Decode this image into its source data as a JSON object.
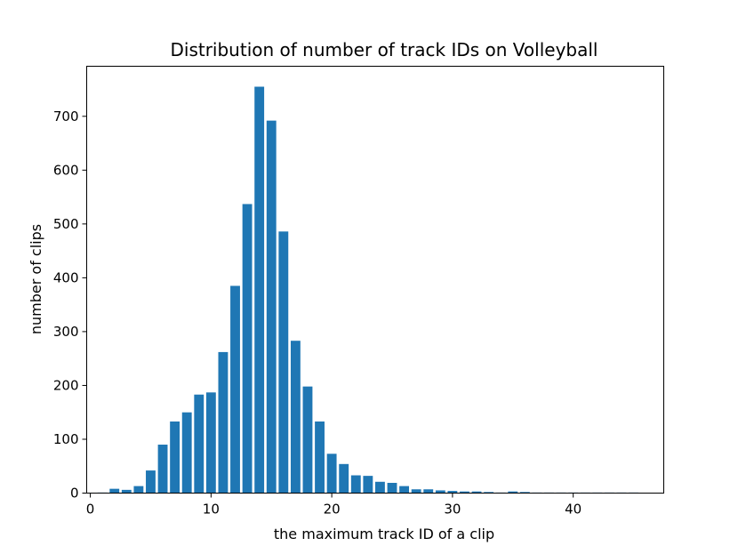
{
  "chart_data": {
    "type": "bar",
    "title": "Distribution of number of track IDs on Volleyball",
    "xlabel": "the maximum track ID of a clip",
    "ylabel": "number of clips",
    "xlim": [
      -0.3,
      47.5
    ],
    "ylim": [
      0,
      793
    ],
    "xticks": [
      0,
      10,
      20,
      30,
      40
    ],
    "yticks": [
      0,
      100,
      200,
      300,
      400,
      500,
      600,
      700
    ],
    "bar_color": "#1f77b4",
    "grid": false,
    "legend": "none",
    "x": [
      1,
      2,
      3,
      4,
      5,
      6,
      7,
      8,
      9,
      10,
      11,
      12,
      13,
      14,
      15,
      16,
      17,
      18,
      19,
      20,
      21,
      22,
      23,
      24,
      25,
      26,
      27,
      28,
      29,
      30,
      31,
      32,
      33,
      34,
      35,
      36,
      37,
      38,
      39,
      40,
      41,
      42,
      43,
      44,
      45
    ],
    "values": [
      1,
      8,
      6,
      13,
      42,
      90,
      133,
      150,
      183,
      187,
      262,
      385,
      537,
      755,
      692,
      486,
      283,
      198,
      133,
      73,
      54,
      33,
      32,
      21,
      19,
      13,
      7,
      7,
      5,
      4,
      3,
      3,
      2,
      1,
      3,
      2,
      1,
      1,
      1,
      1,
      1,
      1,
      1,
      1,
      1
    ]
  }
}
